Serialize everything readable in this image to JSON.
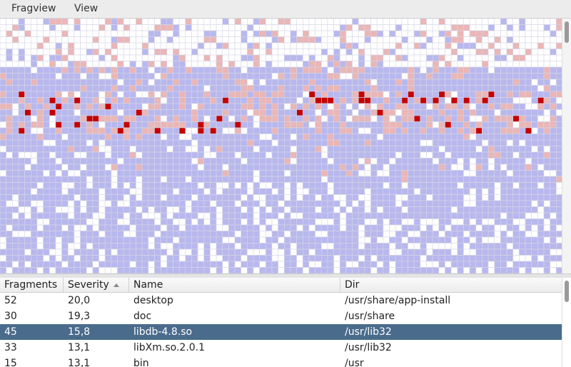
{
  "menu": [
    "Fragview",
    "View"
  ],
  "table": {
    "columns": [
      "Fragments",
      "Severity",
      "Name",
      "Dir"
    ],
    "rows": [
      [
        52,
        "20,0",
        "desktop",
        "/usr/share/app-install"
      ],
      [
        30,
        "19,3",
        "doc",
        "/usr/share"
      ],
      [
        45,
        "15,8",
        "libdb-4.8.so",
        "/usr/lib32"
      ],
      [
        33,
        "13,1",
        "libXm.so.2.0.1",
        "/usr/lib32"
      ],
      [
        15,
        "13,1",
        "bin",
        "/usr"
      ]
    ],
    "selected_row": 2
  }
}
